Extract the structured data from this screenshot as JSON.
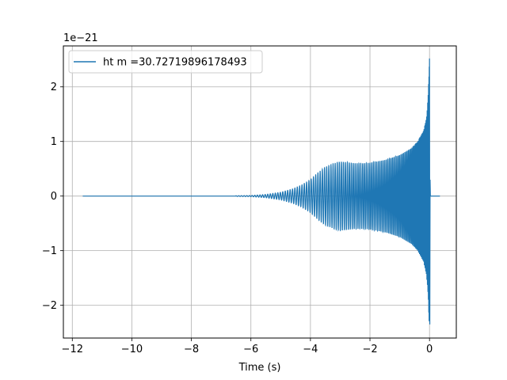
{
  "chart_data": {
    "type": "line",
    "title": "",
    "xlabel": "Time (s)",
    "ylabel": "",
    "offset_text": "1e−21",
    "xlim": [
      -12.3,
      0.9
    ],
    "ylim": [
      -2.6,
      2.75
    ],
    "grid": true,
    "legend_position": "top-left",
    "color": "#1f77b4",
    "x_ticks": [
      -12,
      -10,
      -8,
      -6,
      -4,
      -2,
      0
    ],
    "x_tick_labels": [
      "−12",
      "−10",
      "−8",
      "−6",
      "−4",
      "−2",
      "0"
    ],
    "y_ticks": [
      -2,
      -1,
      0,
      1,
      2
    ],
    "y_tick_labels": [
      "−2",
      "−1",
      "0",
      "1",
      "2"
    ],
    "series": [
      {
        "name": "ht m =30.72719896178493",
        "x_start": -11.65,
        "x_end": 0.35,
        "merger_time": 0.0,
        "envelope": [
          [
            -11.65,
            0.0
          ],
          [
            -7.0,
            0.003
          ],
          [
            -6.0,
            0.01
          ],
          [
            -5.5,
            0.03
          ],
          [
            -5.0,
            0.07
          ],
          [
            -4.6,
            0.13
          ],
          [
            -4.3,
            0.2
          ],
          [
            -4.0,
            0.3
          ],
          [
            -3.7,
            0.45
          ],
          [
            -3.5,
            0.53
          ],
          [
            -3.2,
            0.6
          ],
          [
            -3.0,
            0.63
          ],
          [
            -2.8,
            0.62
          ],
          [
            -2.5,
            0.6
          ],
          [
            -2.2,
            0.6
          ],
          [
            -2.0,
            0.61
          ],
          [
            -1.5,
            0.66
          ],
          [
            -1.0,
            0.75
          ],
          [
            -0.6,
            0.88
          ],
          [
            -0.4,
            1.0
          ],
          [
            -0.2,
            1.2
          ],
          [
            -0.1,
            1.45
          ],
          [
            -0.05,
            1.8
          ],
          [
            -0.02,
            2.2
          ],
          [
            0.0,
            2.5
          ]
        ],
        "peak_max": 2.52,
        "peak_min": -2.35
      }
    ]
  }
}
